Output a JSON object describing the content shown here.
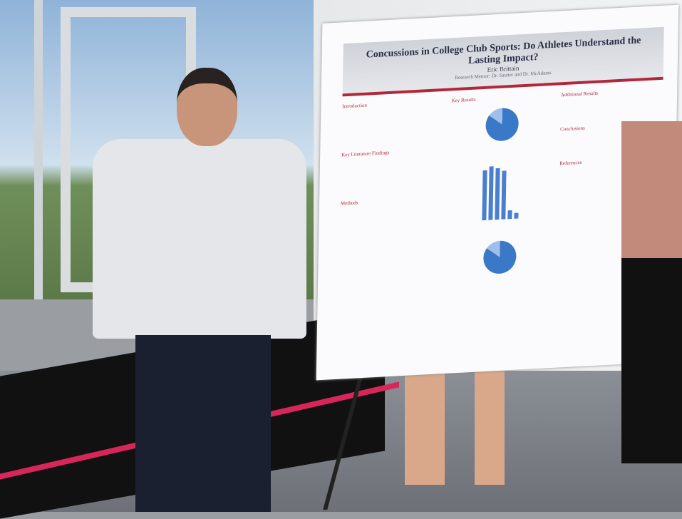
{
  "poster": {
    "title": "Concussions in College Club Sports: Do Athletes Understand the Lasting Impact?",
    "author": "Eric Brittain",
    "mentors": "Research Mentor: Dr. Sautter and Dr. McAdams",
    "sections": [
      "Introduction",
      "Key Literature Findings",
      "Methods",
      "Key Results",
      "Additional Results",
      "Conclusions",
      "References"
    ],
    "accent": "#b2283a"
  }
}
